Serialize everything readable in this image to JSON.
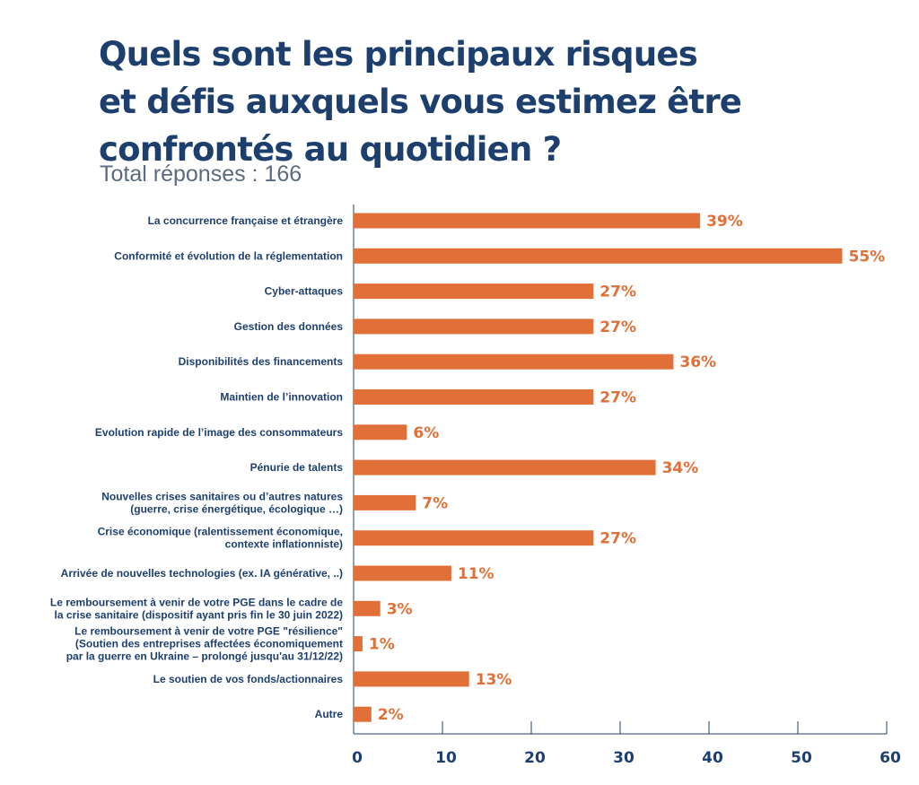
{
  "chart_data": {
    "type": "bar",
    "orientation": "horizontal",
    "title": [
      "Quels sont les principaux risques",
      "et défis auxquels vous estimez être",
      "confrontés au quotidien ?"
    ],
    "subtitle": "Total réponses : 166",
    "categories": [
      [
        "La concurrence française et étrangère"
      ],
      [
        "Conformité et évolution de la réglementation"
      ],
      [
        "Cyber-attaques"
      ],
      [
        "Gestion des données"
      ],
      [
        "Disponibilités des financements"
      ],
      [
        "Maintien de l’innovation"
      ],
      [
        "Evolution rapide de l’image des consommateurs"
      ],
      [
        "Pénurie de talents"
      ],
      [
        "Nouvelles crises sanitaires ou d’autres natures",
        "(guerre, crise énergétique, écologique …)"
      ],
      [
        "Crise économique (ralentissement économique,",
        "contexte inflationniste)"
      ],
      [
        "Arrivée de nouvelles technologies (ex. IA générative, ..)"
      ],
      [
        "Le remboursement à venir de votre PGE dans le cadre de",
        "la crise sanitaire (dispositif ayant pris fin le 30 juin 2022)"
      ],
      [
        "Le remboursement à venir de votre PGE \"résilience\"",
        "(Soutien des entreprises affectées économiquement",
        "par la guerre en Ukraine – prolongé jusqu'au 31/12/22)"
      ],
      [
        "Le soutien de vos fonds/actionnaires"
      ],
      [
        "Autre"
      ]
    ],
    "values": [
      39,
      55,
      27,
      27,
      36,
      27,
      6,
      34,
      7,
      27,
      11,
      3,
      1,
      13,
      2
    ],
    "value_labels": [
      "39%",
      "55%",
      "27%",
      "27%",
      "36%",
      "27%",
      "6%",
      "34%",
      "7%",
      "27%",
      "11%",
      "3%",
      "1%",
      "13%",
      "2%"
    ],
    "xlim": [
      0,
      60
    ],
    "xticks": [
      0,
      10,
      20,
      30,
      40,
      50,
      60
    ],
    "xlabel": "",
    "ylabel": "",
    "grid": false,
    "legend": "none",
    "bar_color": "#e07038",
    "text_color": "#1d3f6e",
    "axis_color": "#1d3f6e"
  }
}
